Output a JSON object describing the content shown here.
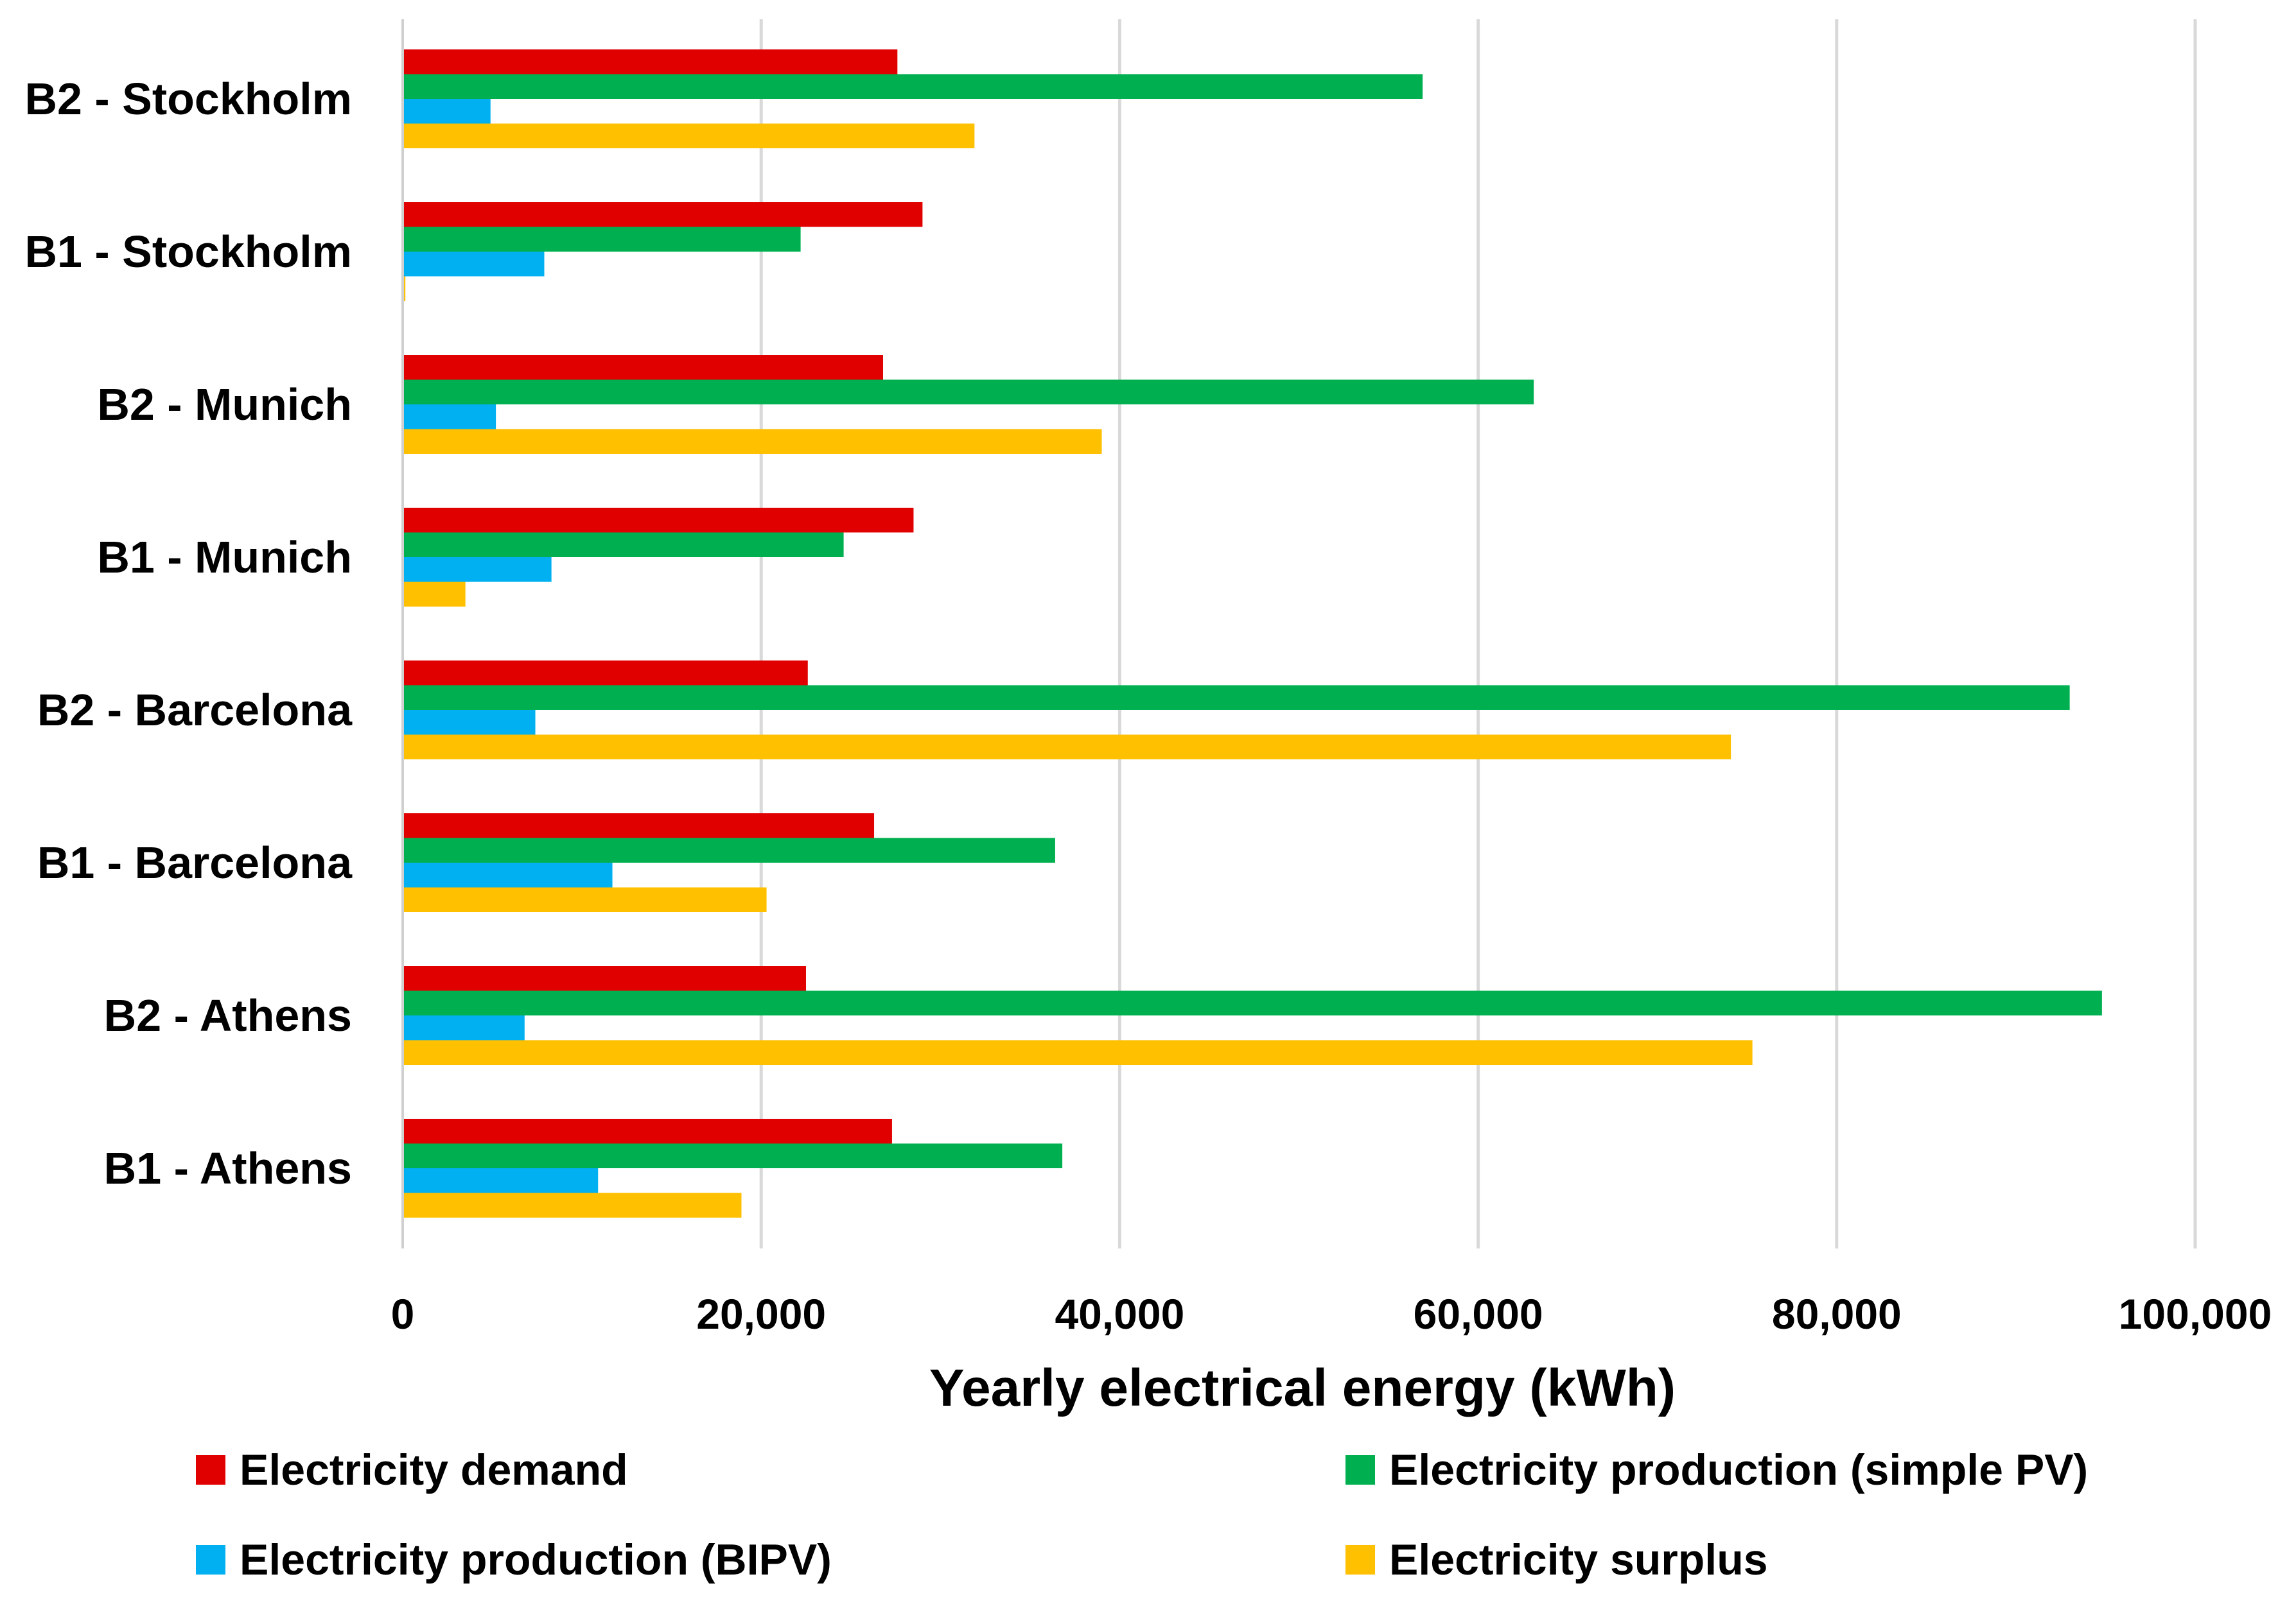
{
  "chart_data": {
    "type": "bar",
    "orientation": "horizontal",
    "title": "",
    "xlabel": "Yearly electrical energy (kWh)",
    "ylabel": "",
    "xlim": [
      0,
      100000
    ],
    "ticks": [
      0,
      20000,
      40000,
      60000,
      80000,
      100000
    ],
    "tick_labels": [
      "0",
      "20,000",
      "40,000",
      "60,000",
      "80,000",
      "100,000"
    ],
    "grid": true,
    "legend_position": "bottom",
    "categories": [
      "B2 - Stockholm",
      "B1 - Stockholm",
      "B2 - Munich",
      "B1 - Munich",
      "B2 - Barcelona",
      "B1 - Barcelona",
      "B2 - Athens",
      "B1 - Athens"
    ],
    "series": [
      {
        "name": "Electricity demand",
        "color": "#E00000",
        "values": [
          27600,
          29000,
          26800,
          28500,
          22600,
          26300,
          22500,
          27300
        ]
      },
      {
        "name": "Electricity production (simple PV)",
        "color": "#00B050",
        "values": [
          56900,
          22200,
          63100,
          24600,
          93000,
          36400,
          94800,
          36800
        ]
      },
      {
        "name": "Electricity production (BIPV)",
        "color": "#00B0F0",
        "values": [
          4900,
          7900,
          5200,
          8300,
          7400,
          11700,
          6800,
          10900
        ]
      },
      {
        "name": "Electricity surplus",
        "color": "#FFC000",
        "values": [
          31900,
          150,
          39000,
          3500,
          74100,
          20300,
          75300,
          18900
        ]
      }
    ]
  }
}
